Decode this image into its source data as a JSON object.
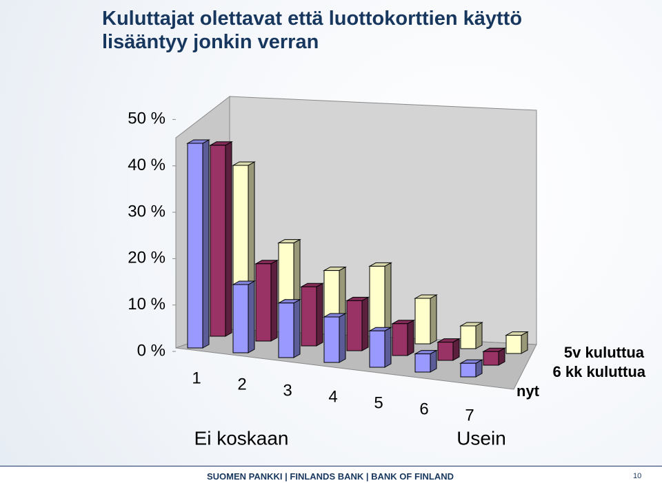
{
  "chart_data": {
    "type": "bar3d",
    "title": "Kuluttajat olettavat että luottokorttien käyttö lisääntyy jonkin verran",
    "categories": [
      "1",
      "2",
      "3",
      "4",
      "5",
      "6",
      "7"
    ],
    "category_annotations": [
      "Ei koskaan",
      "Usein"
    ],
    "series": [
      {
        "name": "nyt",
        "color": "#9999ff",
        "values": [
          45,
          15,
          12,
          10,
          8,
          4,
          3
        ]
      },
      {
        "name": "6 kk kuluttua",
        "color": "#993366",
        "values": [
          42,
          17,
          13,
          11,
          7,
          4,
          3
        ]
      },
      {
        "name": "5v kuluttua",
        "color": "#ffffcc",
        "values": [
          35,
          19,
          14,
          16,
          10,
          5,
          4
        ]
      }
    ],
    "ylim": [
      0,
      50
    ],
    "yticks": [
      {
        "value": 0,
        "label": "0 %"
      },
      {
        "value": 10,
        "label": "10 %"
      },
      {
        "value": 20,
        "label": "20 %"
      },
      {
        "value": 30,
        "label": "30 %"
      },
      {
        "value": 40,
        "label": "40 %"
      },
      {
        "value": 50,
        "label": "50 %"
      }
    ]
  },
  "footer": {
    "text": "SUOMEN PANKKI | FINLANDS BANK | BANK OF FINLAND",
    "page": "10"
  }
}
